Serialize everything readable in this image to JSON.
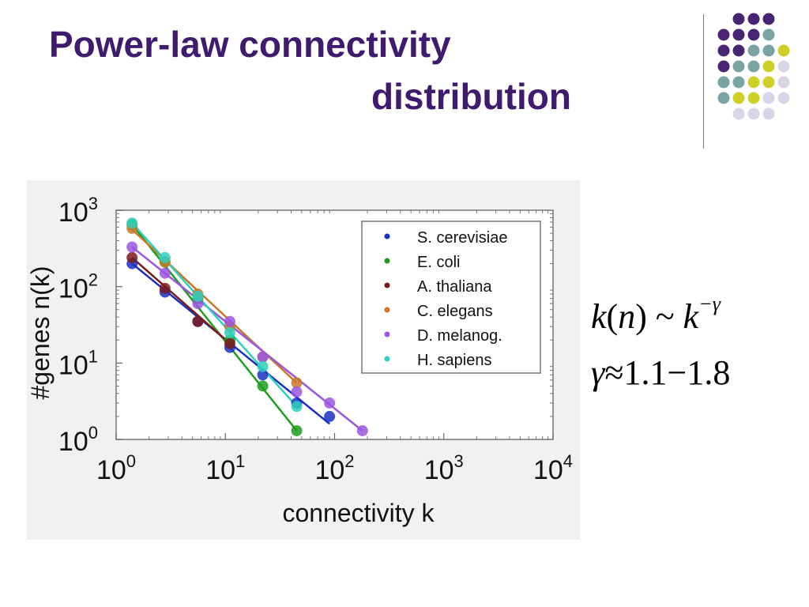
{
  "slide": {
    "title_line1": "Power-law connectivity",
    "title_line2": "distribution",
    "accent_colors": {
      "title": "#3f1a6e",
      "dot_purple": "#4a2474",
      "dot_teal": "#7aa3a3",
      "dot_yellow": "#cfd027",
      "dot_lavender": "#d6d6e8"
    }
  },
  "formula": {
    "line1": {
      "k": "k",
      "n": "n",
      "open": "(",
      "close": ")",
      "sim": "~",
      "k2": "k",
      "exponent": "−γ"
    },
    "line2": {
      "gamma": "γ",
      "approx": "≈",
      "range": "1.1−1.8"
    }
  },
  "chart_data": {
    "type": "line",
    "xscale": "log",
    "yscale": "log",
    "xlabel": "connectivity k",
    "ylabel": "#genes n(k)",
    "xlim": [
      1,
      10000
    ],
    "ylim": [
      1,
      1000
    ],
    "xticks": [
      {
        "base": "10",
        "exp": "0"
      },
      {
        "base": "10",
        "exp": "1"
      },
      {
        "base": "10",
        "exp": "2"
      },
      {
        "base": "10",
        "exp": "3"
      },
      {
        "base": "10",
        "exp": "4"
      }
    ],
    "yticks": [
      {
        "base": "10",
        "exp": "0"
      },
      {
        "base": "10",
        "exp": "1"
      },
      {
        "base": "10",
        "exp": "2"
      },
      {
        "base": "10",
        "exp": "3"
      }
    ],
    "grid": false,
    "legend_position": "top-right",
    "series": [
      {
        "name": "S. cerevisiae",
        "color": "#1a2fc0",
        "x": [
          1.4,
          2.8,
          5.6,
          11,
          22,
          45,
          90
        ],
        "y": [
          200,
          85,
          35,
          16,
          7,
          3,
          2
        ],
        "fit": [
          [
            1.4,
            200
          ],
          [
            90,
            1.6
          ]
        ]
      },
      {
        "name": "E. coli",
        "color": "#1e9e1e",
        "x": [
          1.4,
          2.8,
          5.6,
          11,
          22,
          45
        ],
        "y": [
          650,
          210,
          70,
          20,
          5,
          1.3
        ],
        "fit": [
          [
            1.4,
            650
          ],
          [
            45,
            1.3
          ]
        ]
      },
      {
        "name": "A. thaliana",
        "color": "#7a1a1a",
        "x": [
          1.4,
          2.8,
          5.6,
          11
        ],
        "y": [
          240,
          95,
          35,
          18
        ],
        "fit": [
          [
            1.4,
            240
          ],
          [
            11,
            18
          ]
        ]
      },
      {
        "name": "C. elegans",
        "color": "#c87828",
        "x": [
          1.4,
          2.8,
          5.6,
          11,
          22,
          45
        ],
        "y": [
          580,
          210,
          80,
          30,
          12,
          5.5
        ],
        "fit": [
          [
            1.4,
            560
          ],
          [
            45,
            5.5
          ]
        ]
      },
      {
        "name": "D. melanog.",
        "color": "#9b55e0",
        "x": [
          1.4,
          2.8,
          5.6,
          11,
          22,
          45,
          90,
          180
        ],
        "y": [
          330,
          150,
          60,
          35,
          12,
          4.2,
          3,
          1.3
        ],
        "fit": [
          [
            1.4,
            330
          ],
          [
            180,
            1.3
          ]
        ]
      },
      {
        "name": "H. sapiens",
        "color": "#2fd0c0",
        "x": [
          1.4,
          2.8,
          5.6,
          11,
          22,
          45
        ],
        "y": [
          680,
          240,
          75,
          25,
          9,
          2.7
        ],
        "fit": [
          [
            1.4,
            680
          ],
          [
            45,
            2.7
          ]
        ]
      }
    ]
  }
}
